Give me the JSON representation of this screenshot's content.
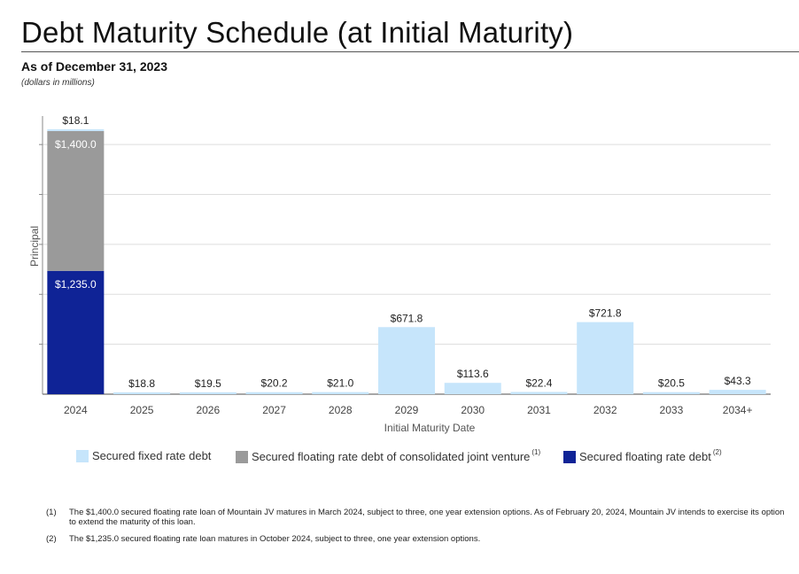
{
  "header": {
    "title": "Debt Maturity Schedule (at Initial Maturity)",
    "subtitle": "As of December 31, 2023",
    "units": "(dollars in millions)"
  },
  "colors": {
    "fixed": "#c6e5fb",
    "jv": "#9a9a9a",
    "floating": "#0f2396",
    "grid": "#dddddd",
    "axis": "#888888"
  },
  "chart_data": {
    "type": "bar",
    "stacked": true,
    "categories": [
      "2024",
      "2025",
      "2026",
      "2027",
      "2028",
      "2029",
      "2030",
      "2031",
      "2032",
      "2033",
      "2034+"
    ],
    "series": [
      {
        "name": "Secured floating rate debt",
        "color": "#0f2396",
        "note": "(2)",
        "values": [
          1235.0,
          0,
          0,
          0,
          0,
          0,
          0,
          0,
          0,
          0,
          0
        ]
      },
      {
        "name": "Secured floating rate debt of consolidated joint venture",
        "color": "#9a9a9a",
        "note": "(1)",
        "values": [
          1400.0,
          0,
          0,
          0,
          0,
          0,
          0,
          0,
          0,
          0,
          0
        ]
      },
      {
        "name": "Secured fixed rate debt",
        "color": "#c6e5fb",
        "note": "",
        "values": [
          18.1,
          18.8,
          19.5,
          20.2,
          21.0,
          671.8,
          113.6,
          22.4,
          721.8,
          20.5,
          43.3
        ]
      }
    ],
    "data_labels": {
      "top": [
        "$18.1",
        "$18.8",
        "$19.5",
        "$20.2",
        "$21.0",
        "$671.8",
        "$113.6",
        "$22.4",
        "$721.8",
        "$20.5",
        "$43.3"
      ],
      "inside_jv": "$1,400.0",
      "inside_floating": "$1,235.0"
    },
    "xlabel": "Initial Maturity Date",
    "ylabel": "Principal",
    "ylim": [
      0,
      2750
    ],
    "grid": true,
    "legend_position": "bottom"
  },
  "legend": [
    {
      "label": "Secured fixed rate debt",
      "color": "#c6e5fb",
      "sup": ""
    },
    {
      "label": "Secured floating rate debt of consolidated joint venture",
      "color": "#9a9a9a",
      "sup": "(1)"
    },
    {
      "label": "Secured floating rate debt",
      "color": "#0f2396",
      "sup": "(2)"
    }
  ],
  "footnotes": [
    {
      "mark": "(1)",
      "text": "The $1,400.0 secured floating rate loan of Mountain JV matures in March 2024, subject to three, one year extension options. As of February 20, 2024, Mountain JV intends to exercise its option to extend the maturity of this loan."
    },
    {
      "mark": "(2)",
      "text": "The $1,235.0 secured floating rate loan matures in October 2024, subject to three, one year extension options."
    }
  ]
}
